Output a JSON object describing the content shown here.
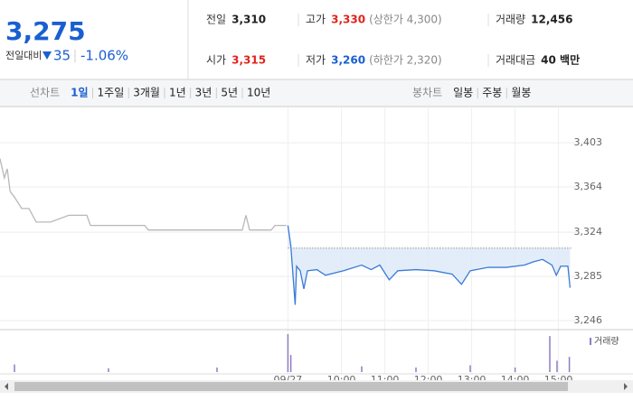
{
  "quote": {
    "price": "3,275",
    "change_label": "전일대비",
    "change": "35",
    "change_rate": "-1.06%",
    "items": [
      {
        "label": "전일",
        "value": "3,310"
      },
      {
        "label": "고가",
        "value": "3,330",
        "note": "(상한가 4,300)"
      },
      {
        "label": "거래량",
        "value": "12,456"
      },
      {
        "label": "시가",
        "value": "3,315"
      },
      {
        "label": "저가",
        "value": "3,260",
        "note": "(하한가 2,320)"
      },
      {
        "label": "거래대금",
        "value": "40 백만"
      }
    ]
  },
  "tabs": {
    "line_label": "선차트",
    "line": [
      "1일",
      "1주일",
      "3개월",
      "1년",
      "3년",
      "5년",
      "10년"
    ],
    "candle_label": "봉차트",
    "candle": [
      "일봉",
      "주봉",
      "월봉"
    ]
  },
  "chart_data": {
    "type": "line",
    "ylim": [
      3238,
      3435
    ],
    "xlim": [
      0,
      875
    ],
    "reference": 3310,
    "yticks": [
      {
        "value": 3403,
        "label": "3,403"
      },
      {
        "value": 3364,
        "label": "3,364"
      },
      {
        "value": 3324,
        "label": "3,324"
      },
      {
        "value": 3285,
        "label": "3,285"
      },
      {
        "value": 3246,
        "label": "3,246"
      }
    ],
    "xticks": [
      {
        "value": 398,
        "label": "09/27"
      },
      {
        "value": 472,
        "label": "10:00"
      },
      {
        "value": 532,
        "label": "11:00"
      },
      {
        "value": 592,
        "label": "12:00"
      },
      {
        "value": 652,
        "label": "13:00"
      },
      {
        "value": 712,
        "label": "14:00"
      },
      {
        "value": 772,
        "label": "15:00"
      }
    ],
    "series": [
      {
        "color": "#b8b8b8",
        "x": [
          0,
          6,
          10,
          14,
          20,
          30,
          40,
          50,
          70,
          95,
          120,
          125,
          150,
          200,
          205,
          250,
          300,
          335,
          340,
          345,
          375,
          380,
          396
        ],
        "values": [
          3389,
          3372,
          3380,
          3360,
          3355,
          3345,
          3345,
          3333,
          3333,
          3339,
          3339,
          3330,
          3330,
          3330,
          3326,
          3326,
          3326,
          3326,
          3339,
          3326,
          3326,
          3330,
          3330
        ]
      },
      {
        "color": "#3a7bd5",
        "x": [
          398,
          402,
          408,
          410,
          415,
          420,
          425,
          438,
          450,
          475,
          500,
          513,
          525,
          538,
          550,
          575,
          600,
          625,
          638,
          650,
          675,
          700,
          725,
          738,
          750,
          763,
          769,
          775,
          785,
          788
        ],
        "values": [
          3330,
          3312,
          3260,
          3294,
          3290,
          3274,
          3290,
          3291,
          3286,
          3290,
          3295,
          3291,
          3295,
          3282,
          3290,
          3291,
          3290,
          3287,
          3278,
          3290,
          3293,
          3293,
          3295,
          3298,
          3300,
          3295,
          3286,
          3294,
          3294,
          3275
        ]
      }
    ],
    "volume": {
      "label": "거래량",
      "color": "#8e7cc3",
      "ylim": [
        0,
        100
      ],
      "x": [
        20,
        150,
        300,
        398,
        402,
        500,
        575,
        650,
        712,
        760,
        770,
        787
      ],
      "values": [
        20,
        10,
        12,
        100,
        45,
        15,
        12,
        18,
        12,
        95,
        30,
        40
      ]
    }
  }
}
